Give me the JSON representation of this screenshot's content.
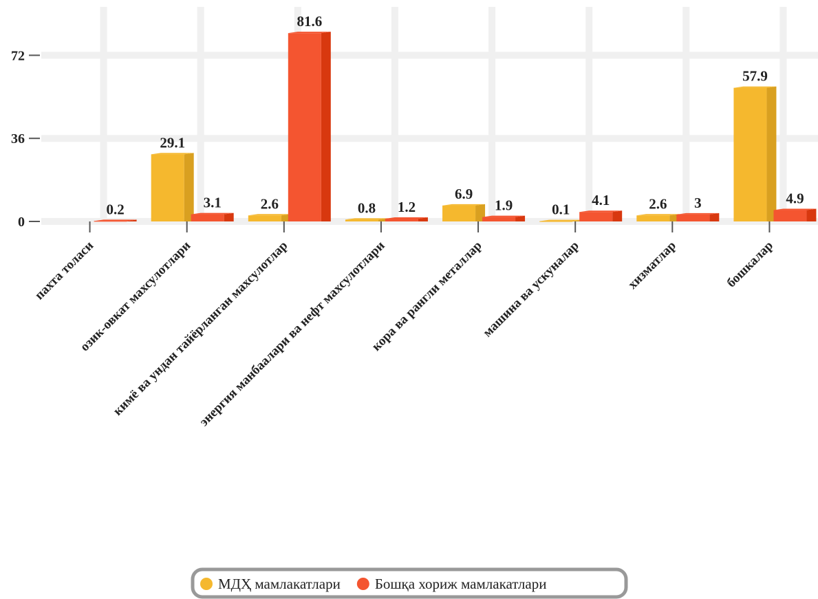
{
  "chart_data": {
    "type": "bar",
    "categories": [
      "пахта толаси",
      "озик-овкат махсулотлари",
      "кимё ва ундан тайёрланган махсулотлар",
      "энергия манбаалари ва нефт махсулотлари",
      "кора ва рангли металлар",
      "машина ва ускуналар",
      "хизматлар",
      "бошкалар"
    ],
    "series": [
      {
        "name": "МДҲ мамлакатлари",
        "color": "#f5b82e",
        "side": "#d9a020",
        "values": [
          null,
          29.1,
          2.6,
          0.8,
          6.9,
          0.1,
          2.6,
          57.9
        ]
      },
      {
        "name": "Бошқа хориж мамлакатлари",
        "color": "#f45530",
        "side": "#d8380f",
        "values": [
          0.2,
          3.1,
          81.6,
          1.2,
          1.9,
          4.1,
          3,
          4.9
        ]
      }
    ],
    "ylim": [
      0,
      90
    ],
    "yticks": [
      0,
      36,
      72
    ],
    "grid": true,
    "legend": "bottom"
  }
}
